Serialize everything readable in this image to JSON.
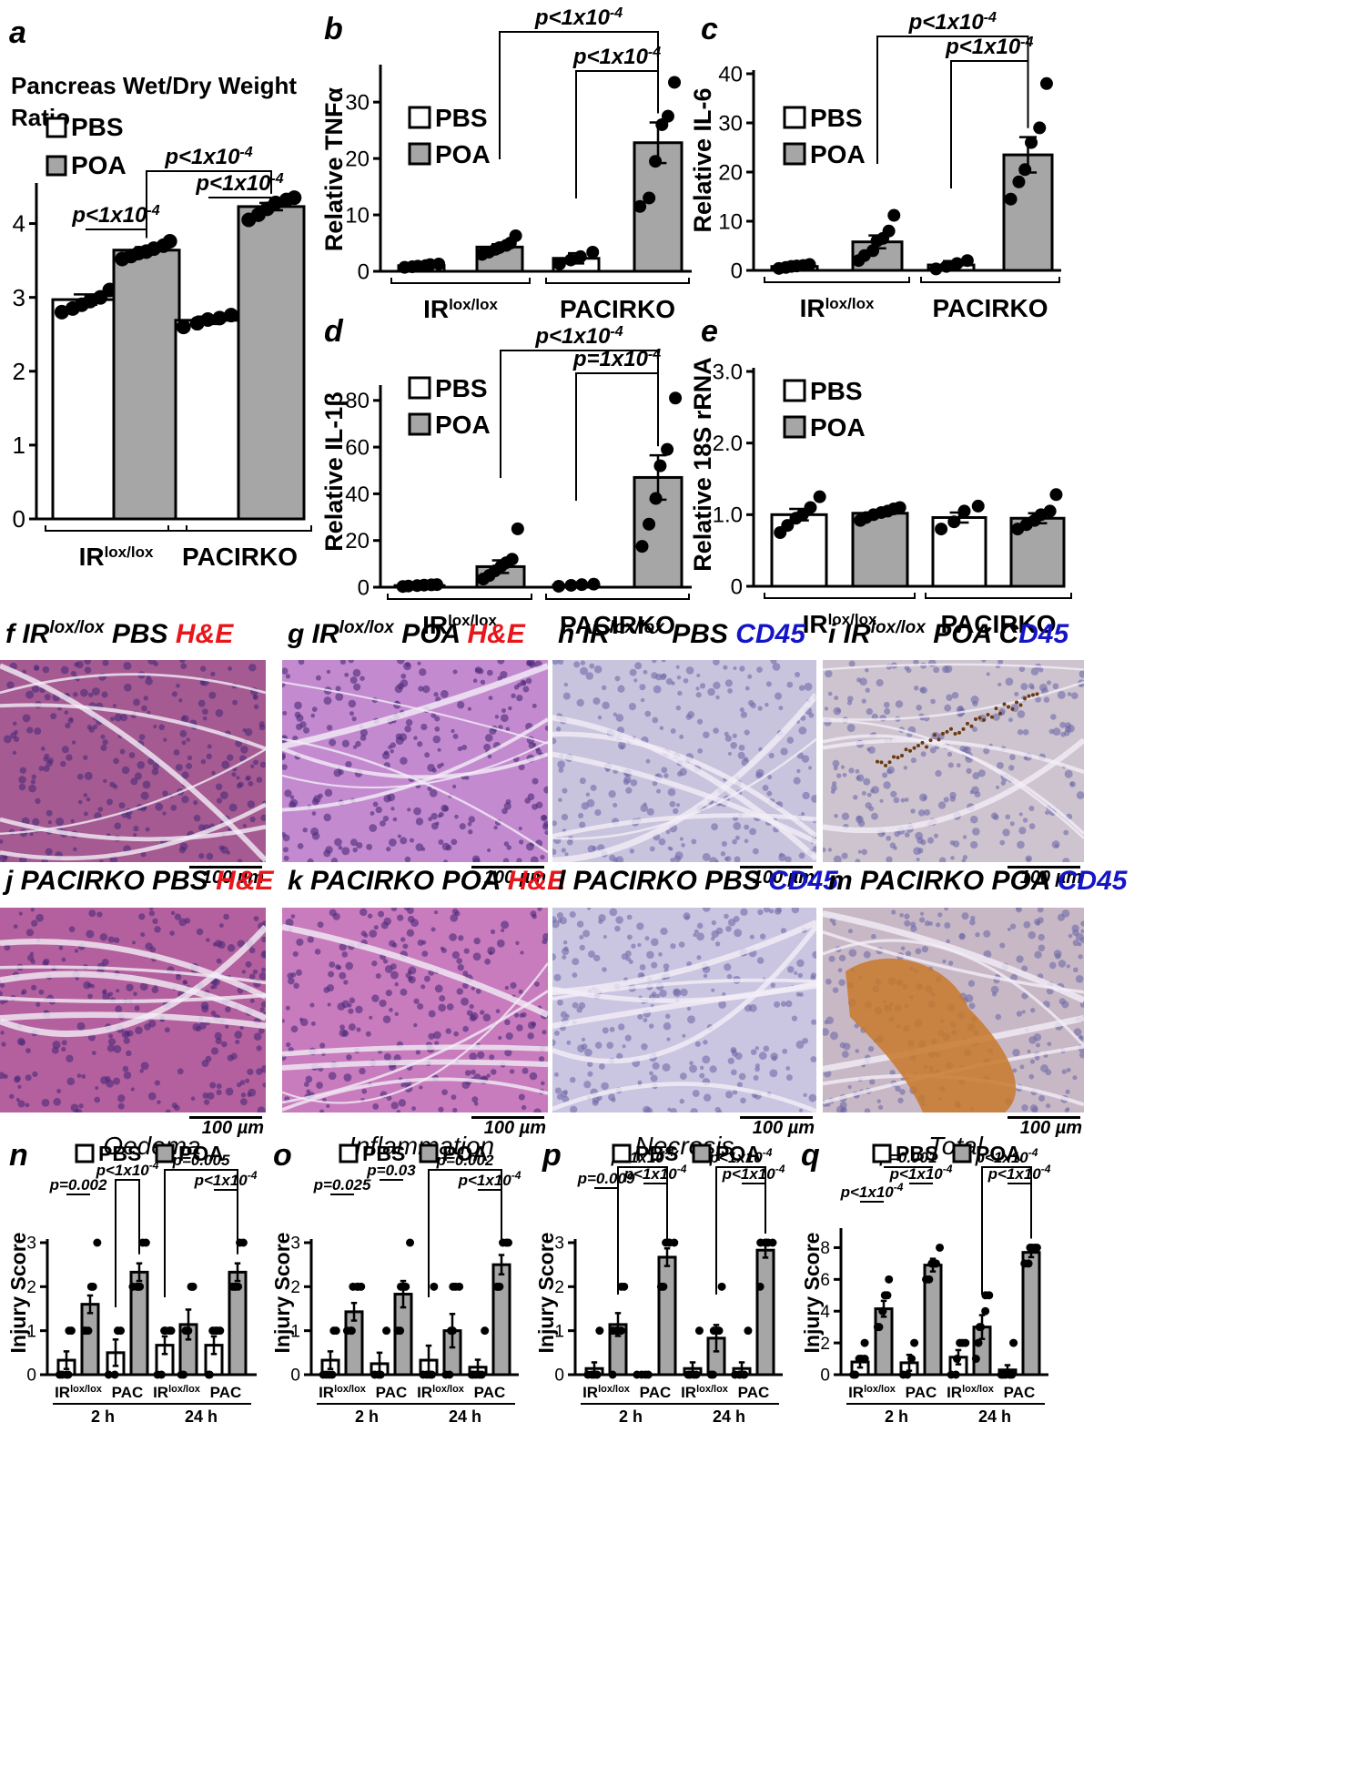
{
  "chart_data": [
    {
      "panel": "a",
      "type": "bar",
      "title": "Pancreas Wet/Dry Weight Ratio",
      "categories": [
        "IRlox/lox",
        "PACIRKO"
      ],
      "legend": [
        "PBS",
        "POA"
      ],
      "ylim": [
        0,
        4.5
      ],
      "yticks": [
        "0",
        "1",
        "2",
        "3",
        "4"
      ],
      "series": [
        {
          "name": "PBS",
          "values": [
            2.97,
            2.69
          ],
          "err": [
            0.07,
            0.05
          ],
          "points": [
            [
              2.8,
              2.85,
              2.9,
              2.95,
              3.0,
              3.1
            ],
            [
              2.6,
              2.65,
              2.7,
              2.72,
              2.76
            ]
          ]
        },
        {
          "name": "POA",
          "values": [
            3.64,
            4.23
          ],
          "err": [
            0.04,
            0.05
          ],
          "points": [
            [
              3.52,
              3.56,
              3.6,
              3.62,
              3.66,
              3.7,
              3.76
            ],
            [
              4.05,
              4.12,
              4.2,
              4.28,
              4.32,
              4.35
            ]
          ]
        }
      ],
      "annotations": [
        "p<1x10-4",
        "p<1x10-4",
        "p<1x10-4"
      ]
    },
    {
      "panel": "b",
      "type": "bar",
      "ylabel": "Relative TNFα",
      "categories": [
        "IRlox/lox",
        "PACIRKO"
      ],
      "legend": [
        "PBS",
        "POA"
      ],
      "ylim": [
        0,
        36
      ],
      "yticks": [
        "0",
        "10",
        "20",
        "30"
      ],
      "series": [
        {
          "name": "PBS",
          "values": [
            1.0,
            2.3
          ],
          "err": [
            0.2,
            0.9
          ],
          "points": [
            [
              0.7,
              0.8,
              0.9,
              1.0,
              1.2,
              1.3
            ],
            [
              1.3,
              2.0,
              2.6,
              3.4
            ]
          ]
        },
        {
          "name": "POA",
          "values": [
            4.3,
            22.8
          ],
          "err": [
            0.5,
            3.6
          ],
          "points": [
            [
              3.0,
              3.4,
              3.9,
              4.2,
              4.6,
              5.0,
              6.3
            ],
            [
              11.5,
              13.0,
              19.5,
              26.0,
              27.5,
              33.5
            ]
          ]
        }
      ],
      "annotations": [
        "p<1x10-4",
        "p<1x10-4"
      ]
    },
    {
      "panel": "c",
      "type": "bar",
      "ylabel": "Relative IL-6",
      "categories": [
        "IRlox/lox",
        "PACIRKO"
      ],
      "legend": [
        "PBS",
        "POA"
      ],
      "ylim": [
        0,
        40
      ],
      "yticks": [
        "0",
        "10",
        "20",
        "30",
        "40"
      ],
      "series": [
        {
          "name": "PBS",
          "values": [
            0.8,
            1.1
          ],
          "err": [
            0.2,
            0.8
          ],
          "points": [
            [
              0.4,
              0.6,
              0.8,
              0.9,
              1.0,
              1.2
            ],
            [
              0.3,
              0.8,
              1.4,
              2.0
            ]
          ]
        },
        {
          "name": "POA",
          "values": [
            5.8,
            23.5
          ],
          "err": [
            1.3,
            3.6
          ],
          "points": [
            [
              2.0,
              3.0,
              4.0,
              6.0,
              6.5,
              8.0,
              11.2
            ],
            [
              14.5,
              18.0,
              20.5,
              26.0,
              29.0,
              38.0
            ]
          ]
        }
      ],
      "annotations": [
        "p<1x10-4",
        "p<1x10-4"
      ]
    },
    {
      "panel": "d",
      "type": "bar",
      "ylabel": "Relative IL-1β",
      "categories": [
        "IRlox/lox",
        "PACIRKO"
      ],
      "legend": [
        "PBS",
        "POA"
      ],
      "ylim": [
        0,
        85
      ],
      "yticks": [
        "0",
        "20",
        "40",
        "60",
        "80"
      ],
      "series": [
        {
          "name": "PBS",
          "values": [
            0.7,
            0.9
          ],
          "err": [
            0.2,
            0.3
          ],
          "points": [
            [
              0.3,
              0.5,
              0.7,
              0.9,
              1.0,
              1.1
            ],
            [
              0.4,
              0.8,
              1.1,
              1.3
            ]
          ]
        },
        {
          "name": "POA",
          "values": [
            8.8,
            47.0
          ],
          "err": [
            2.7,
            9.5
          ],
          "points": [
            [
              3.5,
              5.0,
              7.0,
              9.0,
              10.5,
              12.0,
              25.0
            ],
            [
              17.5,
              27.0,
              38.0,
              52.0,
              59.0,
              81.0
            ]
          ]
        }
      ],
      "annotations": [
        "p<1x10-4",
        "p=1x10-4"
      ]
    },
    {
      "panel": "e",
      "type": "bar",
      "ylabel": "Relative 18S rRNA",
      "categories": [
        "IRlox/lox",
        "PACIRKO"
      ],
      "legend": [
        "PBS",
        "POA"
      ],
      "ylim": [
        0,
        3.0
      ],
      "yticks": [
        "0",
        "1.0",
        "2.0",
        "3.0"
      ],
      "series": [
        {
          "name": "PBS",
          "values": [
            1.0,
            0.96
          ],
          "err": [
            0.08,
            0.07
          ],
          "points": [
            [
              0.75,
              0.85,
              0.95,
              1.0,
              1.1,
              1.25
            ],
            [
              0.8,
              0.9,
              1.05,
              1.12
            ]
          ]
        },
        {
          "name": "POA",
          "values": [
            1.02,
            0.95
          ],
          "err": [
            0.04,
            0.07
          ],
          "points": [
            [
              0.92,
              0.96,
              1.0,
              1.03,
              1.05,
              1.08,
              1.1
            ],
            [
              0.8,
              0.86,
              0.92,
              1.0,
              1.05,
              1.28
            ]
          ]
        }
      ]
    },
    {
      "panel": "n",
      "type": "bar",
      "title": "Oedema",
      "ylabel": "Injury Score",
      "categories": [
        "IRlox/lox",
        "PAC",
        "IRlox/lox",
        "PAC"
      ],
      "time_groups": [
        "2 h",
        "24 h"
      ],
      "legend": [
        "PBS",
        "POA"
      ],
      "ylim": [
        0,
        3
      ],
      "yticks": [
        "0",
        "1",
        "2",
        "3"
      ],
      "series": [
        {
          "name": "PBS",
          "values": [
            0.33,
            0.5,
            0.67,
            0.67
          ],
          "err": [
            0.2,
            0.3,
            0.2,
            0.2
          ],
          "points": [
            [
              0,
              0,
              0,
              0,
              1,
              1
            ],
            [
              0,
              0,
              1,
              1
            ],
            [
              0,
              0,
              1,
              1,
              1,
              1
            ],
            [
              0,
              0,
              1,
              1,
              1,
              1
            ]
          ]
        },
        {
          "name": "POA",
          "values": [
            1.6,
            2.33,
            1.14,
            2.33
          ],
          "err": [
            0.2,
            0.2,
            0.34,
            0.2
          ],
          "points": [
            [
              1,
              1,
              1,
              2,
              2,
              3
            ],
            [
              2,
              2,
              2,
              2,
              3,
              3
            ],
            [
              0,
              0,
              1,
              1,
              2,
              2,
              2
            ],
            [
              2,
              2,
              2,
              2,
              3,
              3
            ]
          ]
        }
      ],
      "annotations": [
        "p=0.002",
        "p<1x10-4",
        "p=0.005",
        "p<1x10-4"
      ]
    },
    {
      "panel": "o",
      "type": "bar",
      "title": "Inflammation",
      "ylabel": "Injury Score",
      "categories": [
        "IRlox/lox",
        "PAC",
        "IRlox/lox",
        "PAC"
      ],
      "time_groups": [
        "2 h",
        "24 h"
      ],
      "legend": [
        "PBS",
        "POA"
      ],
      "ylim": [
        0,
        3
      ],
      "yticks": [
        "0",
        "1",
        "2",
        "3"
      ],
      "series": [
        {
          "name": "PBS",
          "values": [
            0.33,
            0.25,
            0.33,
            0.17
          ],
          "err": [
            0.2,
            0.25,
            0.33,
            0.17
          ],
          "points": [
            [
              0,
              0,
              0,
              0,
              1,
              1
            ],
            [
              0,
              0,
              0,
              1
            ],
            [
              0,
              0,
              0,
              0,
              2
            ],
            [
              0,
              0,
              0,
              0,
              0,
              1
            ]
          ]
        },
        {
          "name": "POA",
          "values": [
            1.43,
            1.83,
            1.0,
            2.5
          ],
          "err": [
            0.2,
            0.3,
            0.38,
            0.22
          ],
          "points": [
            [
              1,
              1,
              1,
              2,
              2,
              2,
              2
            ],
            [
              1,
              1,
              2,
              2,
              2,
              3
            ],
            [
              0,
              0,
              1,
              1,
              2,
              2,
              2
            ],
            [
              2,
              2,
              2,
              3,
              3,
              3
            ]
          ]
        }
      ],
      "annotations": [
        "p=0.025",
        "p=0.03",
        "p=0.002",
        "p<1x10-4"
      ]
    },
    {
      "panel": "p",
      "type": "bar",
      "title": "Necrosis",
      "ylabel": "Injury Score",
      "categories": [
        "IRlox/lox",
        "PAC",
        "IRlox/lox",
        "PAC"
      ],
      "time_groups": [
        "2 h",
        "24 h"
      ],
      "legend": [
        "PBS",
        "POA"
      ],
      "ylim": [
        0,
        3
      ],
      "yticks": [
        "0",
        "1",
        "2",
        "3"
      ],
      "series": [
        {
          "name": "PBS",
          "values": [
            0.14,
            0.0,
            0.14,
            0.14
          ],
          "err": [
            0.14,
            0.0,
            0.14,
            0.14
          ],
          "points": [
            [
              0,
              0,
              0,
              0,
              0,
              1
            ],
            [
              0,
              0,
              0,
              0
            ],
            [
              0,
              0,
              0,
              0,
              0,
              1
            ],
            [
              0,
              0,
              0,
              0,
              0,
              1
            ]
          ]
        },
        {
          "name": "POA",
          "values": [
            1.14,
            2.67,
            0.83,
            2.83
          ],
          "err": [
            0.26,
            0.2,
            0.3,
            0.17
          ],
          "points": [
            [
              0,
              1,
              1,
              1,
              1,
              2,
              2
            ],
            [
              2,
              2,
              3,
              3,
              3,
              3
            ],
            [
              0,
              0,
              1,
              1,
              1,
              2
            ],
            [
              2,
              3,
              3,
              3,
              3,
              3
            ]
          ]
        }
      ],
      "annotations": [
        "p=0.009",
        "p<1x10-4",
        "p<1x10-4",
        "p<1x10-4",
        "p<1x10-4"
      ]
    },
    {
      "panel": "q",
      "type": "bar",
      "title": "Total",
      "ylabel": "Injury Score",
      "categories": [
        "IRlox/lox",
        "PAC",
        "IRlox/lox",
        "PAC"
      ],
      "time_groups": [
        "2 h",
        "24 h"
      ],
      "legend": [
        "PBS",
        "POA"
      ],
      "ylim": [
        0,
        9
      ],
      "yticks": [
        "0",
        "2",
        "4",
        "6",
        "8"
      ],
      "series": [
        {
          "name": "PBS",
          "values": [
            0.8,
            0.75,
            1.1,
            0.3
          ],
          "err": [
            0.35,
            0.5,
            0.45,
            0.3
          ],
          "points": [
            [
              0,
              0,
              1,
              1,
              1,
              2
            ],
            [
              0,
              0,
              1,
              2
            ],
            [
              0,
              0,
              1,
              2,
              2,
              2
            ],
            [
              0,
              0,
              0,
              0,
              0,
              2
            ]
          ]
        },
        {
          "name": "POA",
          "values": [
            4.15,
            6.9,
            3.0,
            7.7
          ],
          "err": [
            0.5,
            0.4,
            0.75,
            0.3
          ],
          "points": [
            [
              3,
              3,
              4,
              4,
              5,
              5,
              6
            ],
            [
              6,
              6,
              7,
              7,
              7,
              8
            ],
            [
              1,
              2,
              3,
              3,
              4,
              5,
              5
            ],
            [
              7,
              7,
              8,
              8,
              8,
              8
            ]
          ]
        }
      ],
      "annotations": [
        "p<1x10-4",
        "p=0.001",
        "p<1x10-4",
        "p<1x10-4",
        "p<1x10-4"
      ]
    }
  ],
  "panel_letters": {
    "a": "a",
    "b": "b",
    "c": "c",
    "d": "d",
    "e": "e",
    "f": "f",
    "g": "g",
    "h": "h",
    "i": "i",
    "j": "j",
    "k": "k",
    "l": "l",
    "m": "m",
    "n": "n",
    "o": "o",
    "p": "p",
    "q": "q"
  },
  "micrographs": [
    {
      "letter": "f",
      "genotype": "IR",
      "sup": "lox/lox",
      "treatment": "PBS",
      "stain": "H&E",
      "scale": "100 µm",
      "tone": "#a55a92"
    },
    {
      "letter": "g",
      "genotype": "IR",
      "sup": "lox/lox",
      "treatment": "POA",
      "stain": "H&E",
      "scale": "100 µm",
      "tone": "#c48ad0"
    },
    {
      "letter": "h",
      "genotype": "IR",
      "sup": "lox/lox",
      "treatment": "PBS",
      "stain": "CD45",
      "scale": "100 µm",
      "tone": "#c9c4dd"
    },
    {
      "letter": "i",
      "genotype": "IR",
      "sup": "lox/lox",
      "treatment": "POA",
      "stain_prefix": "C",
      "stain": "D45",
      "scale": "100 µm",
      "tone": "#cdc4cf"
    },
    {
      "letter": "j",
      "genotype": "PACIRKO",
      "sup": "",
      "treatment": "PBS",
      "stain": "H&E",
      "scale": "100 µm",
      "tone": "#b4609e"
    },
    {
      "letter": "k",
      "genotype": "PACIRKO",
      "sup": "",
      "treatment": "POA",
      "stain": "H&E",
      "scale": "100 µm",
      "tone": "#c87bbd"
    },
    {
      "letter": "l",
      "genotype": "PACIRKO",
      "sup": "",
      "treatment": "PBS",
      "stain": "CD45",
      "scale": "100 µm",
      "tone": "#cac5e0"
    },
    {
      "letter": "m",
      "genotype": "PACIRKO",
      "sup": "",
      "treatment": "POA",
      "stain": "CD45",
      "scale": "100 µm",
      "tone": "#c8b8c6"
    }
  ],
  "colors": {
    "pbs": "#ffffff",
    "poa": "#a6a6a6",
    "stroke": "#000000",
    "stain_red": "#e8161b",
    "stain_blue": "#1515c8"
  }
}
